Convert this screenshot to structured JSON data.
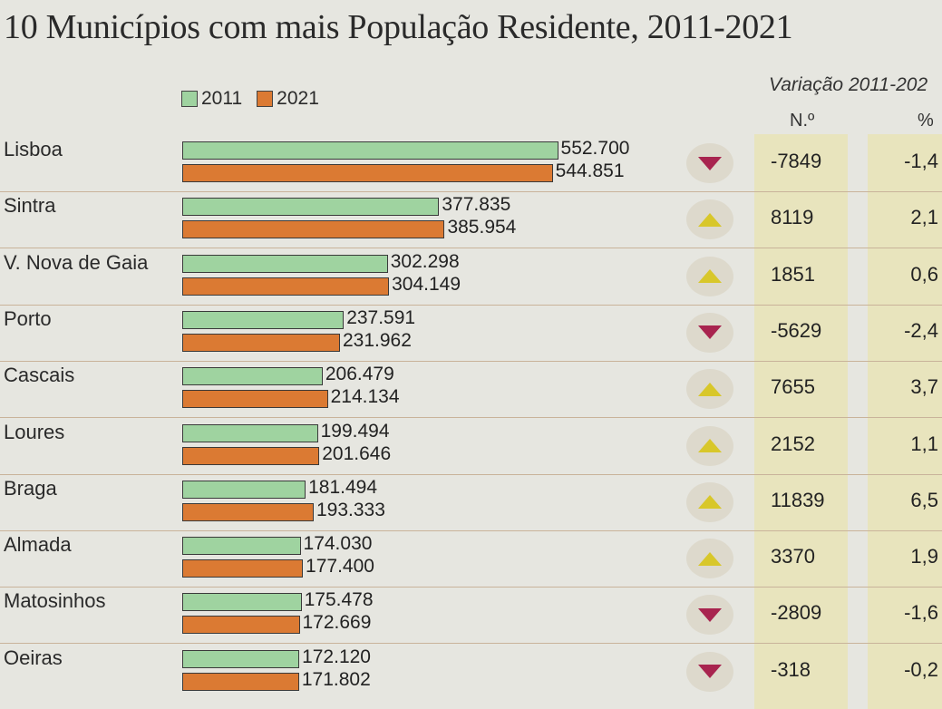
{
  "title": "10 Municípios com mais População Residente, 2011-2021",
  "legend": {
    "y2011": "2011",
    "y2021": "2021"
  },
  "colors": {
    "bar2011": "#9fd3a0",
    "bar2021": "#db7a33",
    "up": "#d8c72a",
    "down": "#a8244f",
    "highlight": "#e8e4bd"
  },
  "variation": {
    "title": "Variação 2011-202",
    "col_n": "N.º",
    "col_pct": "%"
  },
  "chart_data": {
    "type": "bar",
    "orientation": "horizontal",
    "title": "10 Municípios com mais População Residente, 2011-2021",
    "categories": [
      "Lisboa",
      "Sintra",
      "V. Nova de Gaia",
      "Porto",
      "Cascais",
      "Loures",
      "Braga",
      "Almada",
      "Matosinhos",
      "Oeiras"
    ],
    "series": [
      {
        "name": "2011",
        "values": [
          552700,
          377835,
          302298,
          237591,
          206479,
          199494,
          181494,
          174030,
          175478,
          172120
        ],
        "labels": [
          "552.700",
          "377.835",
          "302.298",
          "237.591",
          "206.479",
          "199.494",
          "181.494",
          "174.030",
          "175.478",
          "172.120"
        ]
      },
      {
        "name": "2021",
        "values": [
          544851,
          385954,
          304149,
          231962,
          214134,
          201646,
          193333,
          177400,
          172669,
          171802
        ],
        "labels": [
          "544.851",
          "385.954",
          "304.149",
          "231.962",
          "214.134",
          "201.646",
          "193.333",
          "177.400",
          "172.669",
          "171.802"
        ]
      }
    ],
    "xlim": [
      0,
      600000
    ],
    "variation_n": [
      "-7849",
      "8119",
      "1851",
      "-5629",
      "7655",
      "2152",
      "11839",
      "3370",
      "-2809",
      "-318"
    ],
    "variation_pct": [
      "-1,4",
      "2,1",
      "0,6",
      "-2,4",
      "3,7",
      "1,1",
      "6,5",
      "1,9",
      "-1,6",
      "-0,2"
    ],
    "direction": [
      "down",
      "up",
      "up",
      "down",
      "up",
      "up",
      "up",
      "up",
      "down",
      "down"
    ]
  }
}
